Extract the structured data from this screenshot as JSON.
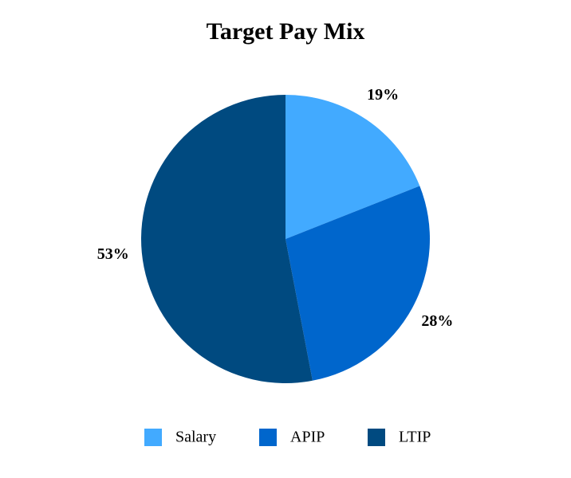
{
  "chart_data": {
    "type": "pie",
    "title": "Target Pay Mix",
    "categories": [
      "Salary",
      "APIP",
      "LTIP"
    ],
    "values": [
      19,
      28,
      53
    ],
    "value_labels": [
      "19%",
      "28%",
      "53%"
    ],
    "colors": [
      "#42aaff",
      "#0066cc",
      "#004a80"
    ],
    "legend": "bottom"
  }
}
